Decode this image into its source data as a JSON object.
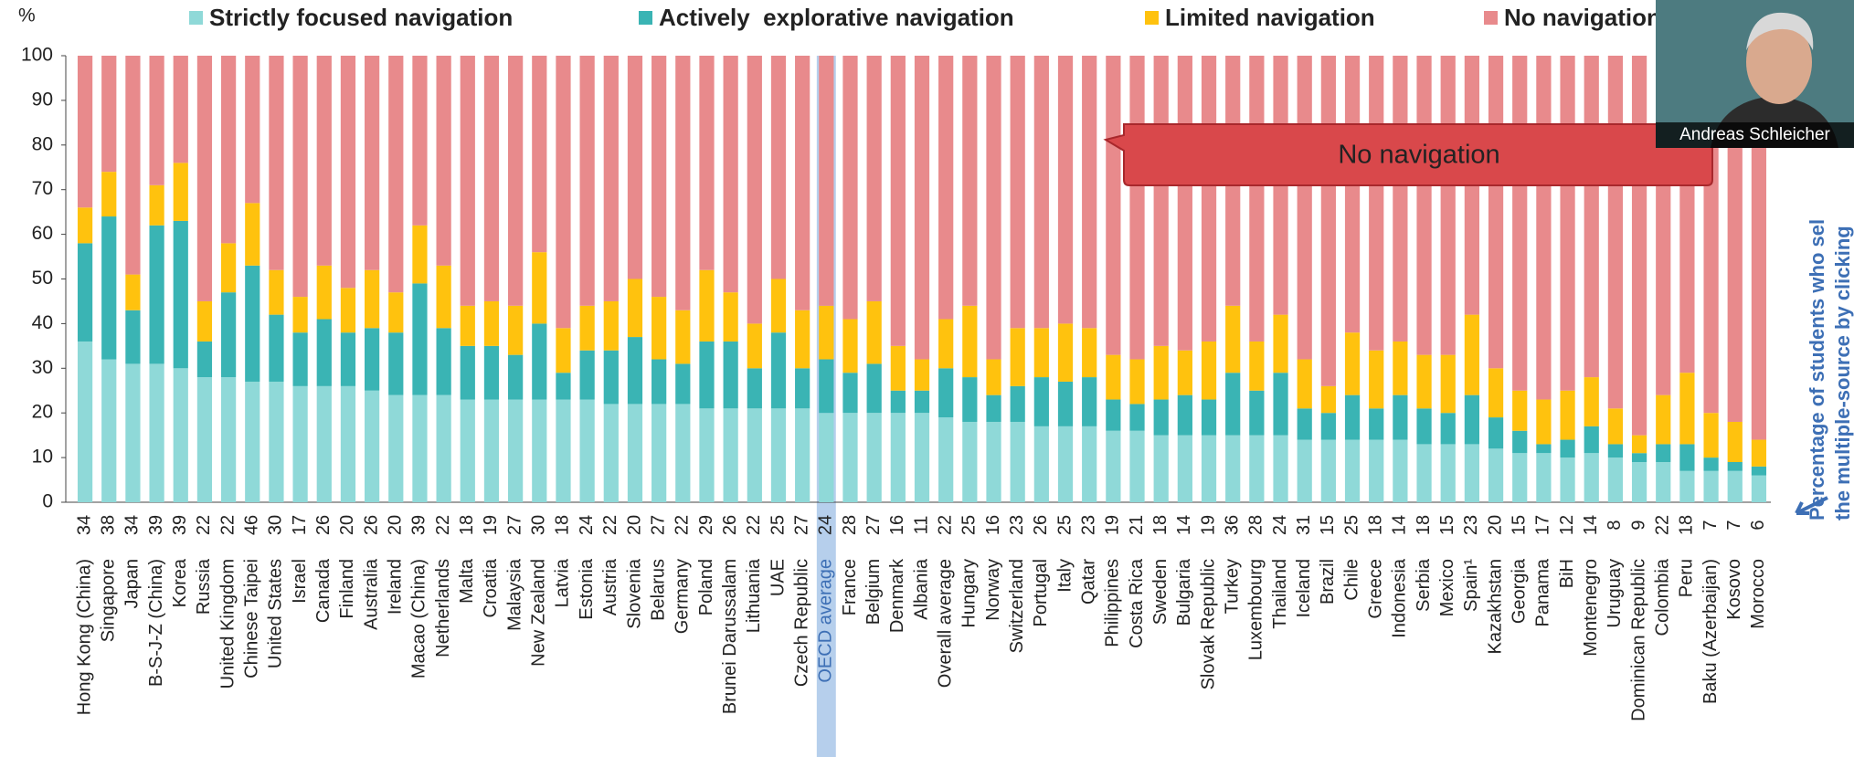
{
  "chart_data": {
    "type": "stacked_bar",
    "y_label": "%",
    "categories": [
      "Hong Kong (China)",
      "Singapore",
      "Japan",
      "B-S-J-Z (China)",
      "Korea",
      "Russia",
      "United Kingdom",
      "Chinese Taipei",
      "United States",
      "Israel",
      "Canada",
      "Finland",
      "Australia",
      "Ireland",
      "Macao (China)",
      "Netherlands",
      "Malta",
      "Croatia",
      "Malaysia",
      "New Zealand",
      "Latvia",
      "Estonia",
      "Austria",
      "Slovenia",
      "Belarus",
      "Germany",
      "Poland",
      "Brunei Darussalam",
      "Lithuania",
      "UAE",
      "Czech Republic",
      "OECD average",
      "France",
      "Belgium",
      "Denmark",
      "Albania",
      "Overall average",
      "Hungary",
      "Norway",
      "Switzerland",
      "Portugal",
      "Italy",
      "Qatar",
      "Philippines",
      "Costa Rica",
      "Sweden",
      "Bulgaria",
      "Slovak Republic",
      "Turkey",
      "Luxembourg",
      "Thailand",
      "Iceland",
      "Brazil",
      "Chile",
      "Greece",
      "Indonesia",
      "Serbia",
      "Mexico",
      "Spain¹",
      "Kazakhstan",
      "Georgia",
      "Panama",
      "BiH",
      "Montenegro",
      "Uruguay",
      "Dominican Republic",
      "Colombia",
      "Peru",
      "Baku (Azerbaijan)",
      "Kosovo",
      "Morocco"
    ],
    "column_labels": [
      34,
      38,
      34,
      39,
      39,
      22,
      22,
      46,
      30,
      17,
      26,
      20,
      26,
      20,
      39,
      22,
      18,
      19,
      27,
      30,
      18,
      24,
      22,
      20,
      27,
      22,
      29,
      26,
      22,
      25,
      27,
      24,
      28,
      27,
      16,
      11,
      22,
      25,
      16,
      23,
      26,
      25,
      23,
      19,
      21,
      18,
      14,
      19,
      36,
      28,
      24,
      31,
      15,
      25,
      18,
      14,
      18,
      15,
      23,
      20,
      15,
      17,
      12,
      14,
      8,
      9,
      22,
      18,
      7,
      7,
      6
    ],
    "series": [
      {
        "name": "Strictly focused navigation",
        "color": "#8fd9d8",
        "values": [
          36,
          32,
          31,
          31,
          30,
          28,
          28,
          27,
          27,
          26,
          26,
          26,
          25,
          24,
          24,
          24,
          23,
          23,
          23,
          23,
          23,
          23,
          22,
          22,
          22,
          22,
          21,
          21,
          21,
          21,
          21,
          20,
          20,
          20,
          20,
          20,
          19,
          18,
          18,
          18,
          17,
          17,
          17,
          16,
          16,
          15,
          15,
          15,
          15,
          15,
          15,
          14,
          14,
          14,
          14,
          14,
          13,
          13,
          13,
          12,
          11,
          11,
          10,
          11,
          10,
          9,
          9,
          7,
          7,
          7,
          6
        ]
      },
      {
        "name": "Actively  explorative navigation",
        "color": "#3ab4b4",
        "values": [
          22,
          32,
          12,
          31,
          33,
          8,
          19,
          26,
          15,
          12,
          15,
          12,
          14,
          14,
          25,
          15,
          12,
          12,
          10,
          17,
          6,
          11,
          12,
          15,
          10,
          9,
          15,
          15,
          9,
          17,
          9,
          12,
          9,
          11,
          5,
          5,
          11,
          10,
          6,
          8,
          11,
          10,
          11,
          7,
          6,
          8,
          9,
          8,
          14,
          10,
          14,
          7,
          6,
          10,
          7,
          10,
          8,
          7,
          11,
          7,
          5,
          2,
          4,
          6,
          3,
          2,
          4,
          6,
          3,
          2,
          2
        ]
      },
      {
        "name": "Limited navigation",
        "color": "#ffc20e",
        "values": [
          8,
          10,
          8,
          9,
          13,
          9,
          11,
          14,
          10,
          8,
          12,
          10,
          13,
          9,
          13,
          14,
          9,
          10,
          11,
          16,
          10,
          10,
          11,
          13,
          14,
          12,
          16,
          11,
          10,
          12,
          13,
          12,
          12,
          14,
          10,
          7,
          11,
          16,
          8,
          13,
          11,
          13,
          11,
          10,
          10,
          12,
          10,
          13,
          15,
          11,
          13,
          11,
          6,
          14,
          13,
          12,
          12,
          13,
          18,
          11,
          9,
          10,
          11,
          11,
          8,
          4,
          11,
          16,
          10,
          9,
          6
        ]
      },
      {
        "name": "No navigation",
        "color": "#e88a8c",
        "values": [
          34,
          26,
          49,
          29,
          24,
          55,
          42,
          33,
          48,
          54,
          47,
          52,
          48,
          53,
          38,
          47,
          56,
          55,
          56,
          44,
          61,
          56,
          55,
          50,
          54,
          57,
          48,
          53,
          60,
          50,
          57,
          56,
          59,
          55,
          65,
          68,
          59,
          56,
          68,
          61,
          61,
          60,
          61,
          67,
          68,
          65,
          66,
          64,
          56,
          64,
          58,
          68,
          74,
          62,
          66,
          64,
          67,
          67,
          58,
          70,
          75,
          77,
          75,
          72,
          79,
          85,
          76,
          71,
          80,
          82,
          86
        ]
      }
    ],
    "ylim": [
      0,
      100
    ],
    "yticks": [
      0,
      10,
      20,
      30,
      40,
      50,
      60,
      70,
      80,
      90,
      100
    ],
    "callout": "No navigation",
    "side_note": [
      "Percentage of students who sel",
      "the multiple-source by clicking"
    ],
    "speaker": "Andreas Schleicher"
  }
}
